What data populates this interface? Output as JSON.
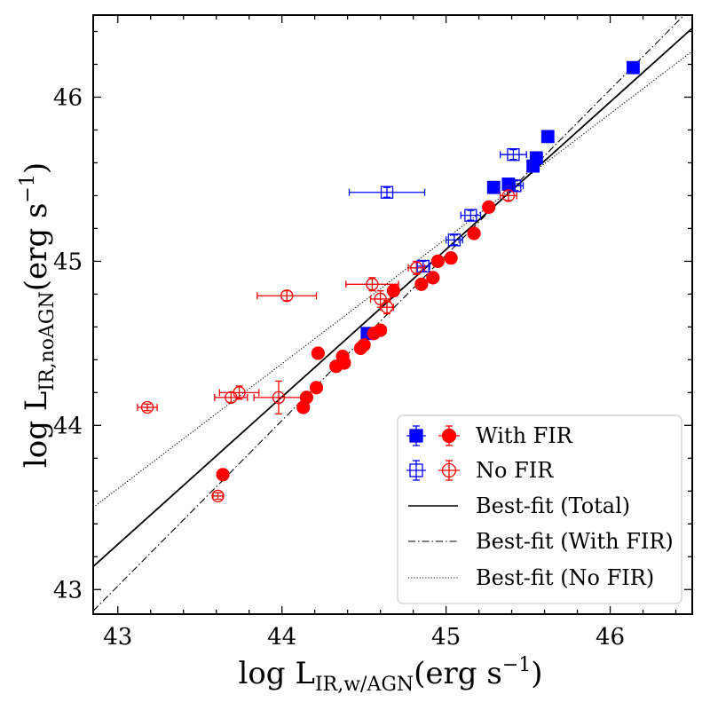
{
  "chart_data": {
    "type": "scatter",
    "xlabel": {
      "main": "log L",
      "sub": "IR,w/AGN",
      "unit": "(erg s",
      "exp": "−1",
      "close": ")"
    },
    "ylabel": {
      "main": "log L",
      "sub": "IR,noAGN",
      "unit": "(erg s",
      "exp": "−1",
      "close": ")"
    },
    "xlim": [
      42.85,
      46.5
    ],
    "ylim": [
      42.85,
      46.5
    ],
    "xticks": [
      43,
      44,
      45,
      46
    ],
    "yticks": [
      43,
      44,
      45,
      46
    ],
    "xtick_labels": [
      "43",
      "44",
      "45",
      "46"
    ],
    "ytick_labels": [
      "43",
      "44",
      "45",
      "46"
    ],
    "legend_position": "lower-right",
    "colors": {
      "red": "#ff0000",
      "blue": "#0000ff",
      "black": "#000000"
    },
    "series": [
      {
        "name": "With FIR",
        "marker": "square",
        "color": "#0000ff",
        "filled": true,
        "points": [
          {
            "x": 46.14,
            "y": 46.18
          },
          {
            "x": 45.62,
            "y": 45.76
          },
          {
            "x": 45.55,
            "y": 45.63
          },
          {
            "x": 45.53,
            "y": 45.58
          },
          {
            "x": 45.38,
            "y": 45.47
          },
          {
            "x": 45.29,
            "y": 45.45
          },
          {
            "x": 44.52,
            "y": 44.56
          }
        ]
      },
      {
        "name": "With FIR",
        "marker": "circle",
        "color": "#ff0000",
        "filled": true,
        "points": [
          {
            "x": 45.26,
            "y": 45.33
          },
          {
            "x": 45.17,
            "y": 45.17
          },
          {
            "x": 45.03,
            "y": 45.02
          },
          {
            "x": 44.95,
            "y": 45.0
          },
          {
            "x": 44.92,
            "y": 44.9
          },
          {
            "x": 44.85,
            "y": 44.86
          },
          {
            "x": 44.68,
            "y": 44.82
          },
          {
            "x": 44.6,
            "y": 44.58
          },
          {
            "x": 44.56,
            "y": 44.56
          },
          {
            "x": 44.5,
            "y": 44.49
          },
          {
            "x": 44.48,
            "y": 44.47
          },
          {
            "x": 44.37,
            "y": 44.42
          },
          {
            "x": 44.38,
            "y": 44.38
          },
          {
            "x": 44.33,
            "y": 44.36
          },
          {
            "x": 44.22,
            "y": 44.44
          },
          {
            "x": 44.21,
            "y": 44.23
          },
          {
            "x": 44.15,
            "y": 44.17
          },
          {
            "x": 44.13,
            "y": 44.11
          },
          {
            "x": 43.64,
            "y": 43.7
          }
        ]
      },
      {
        "name": "No FIR",
        "marker": "square",
        "color": "#0000ff",
        "filled": false,
        "points": [
          {
            "x": 44.64,
            "y": 45.42,
            "xerr": 0.23,
            "yerr": 0.03
          },
          {
            "x": 45.41,
            "y": 45.65,
            "xerr": 0.08,
            "yerr": 0.03
          },
          {
            "x": 45.42,
            "y": 45.46,
            "xerr": 0.05,
            "yerr": 0.03
          },
          {
            "x": 45.15,
            "y": 45.28,
            "xerr": 0.06,
            "yerr": 0.03
          },
          {
            "x": 45.05,
            "y": 45.13,
            "xerr": 0.05,
            "yerr": 0.03
          },
          {
            "x": 44.86,
            "y": 44.97,
            "xerr": 0.04,
            "yerr": 0.03
          }
        ]
      },
      {
        "name": "No FIR",
        "marker": "circle",
        "color": "#ff0000",
        "filled": false,
        "points": [
          {
            "x": 45.38,
            "y": 45.4,
            "xerr": 0.05,
            "yerr": 0.03
          },
          {
            "x": 44.82,
            "y": 44.96,
            "xerr": 0.05,
            "yerr": 0.04
          },
          {
            "x": 44.55,
            "y": 44.86,
            "xerr": 0.16,
            "yerr": 0.04
          },
          {
            "x": 44.6,
            "y": 44.77,
            "xerr": 0.06,
            "yerr": 0.05
          },
          {
            "x": 44.64,
            "y": 44.72,
            "xerr": 0.04,
            "yerr": 0.04
          },
          {
            "x": 44.03,
            "y": 44.79,
            "xerr": 0.18,
            "yerr": 0.03
          },
          {
            "x": 43.74,
            "y": 44.2,
            "xerr": 0.12,
            "yerr": 0.04
          },
          {
            "x": 43.69,
            "y": 44.17,
            "xerr": 0.1,
            "yerr": 0.03
          },
          {
            "x": 43.98,
            "y": 44.17,
            "xerr": 0.15,
            "yerr": 0.1
          },
          {
            "x": 43.18,
            "y": 44.11,
            "xerr": 0.06,
            "yerr": 0.02
          },
          {
            "x": 43.61,
            "y": 43.57,
            "xerr": 0.03,
            "yerr": 0.02
          }
        ]
      }
    ],
    "fit_lines": [
      {
        "name": "Best-fit (Total)",
        "style": "solid",
        "x": [
          42.85,
          46.5
        ],
        "y": [
          43.14,
          46.42
        ]
      },
      {
        "name": "Best-fit (With FIR)",
        "style": "dashdot",
        "x": [
          42.85,
          46.5
        ],
        "y": [
          42.87,
          46.55
        ]
      },
      {
        "name": "Best-fit (No FIR)",
        "style": "dotted",
        "x": [
          42.85,
          46.5
        ],
        "y": [
          43.5,
          46.28
        ]
      }
    ],
    "legend": [
      {
        "label": "With FIR",
        "kind": "markers",
        "filled": true
      },
      {
        "label": "No FIR",
        "kind": "markers",
        "filled": false
      },
      {
        "label": "Best-fit (Total)",
        "kind": "line",
        "style": "solid"
      },
      {
        "label": "Best-fit (With FIR)",
        "kind": "line",
        "style": "dashdot"
      },
      {
        "label": "Best-fit (No FIR)",
        "kind": "line",
        "style": "dotted"
      }
    ]
  }
}
